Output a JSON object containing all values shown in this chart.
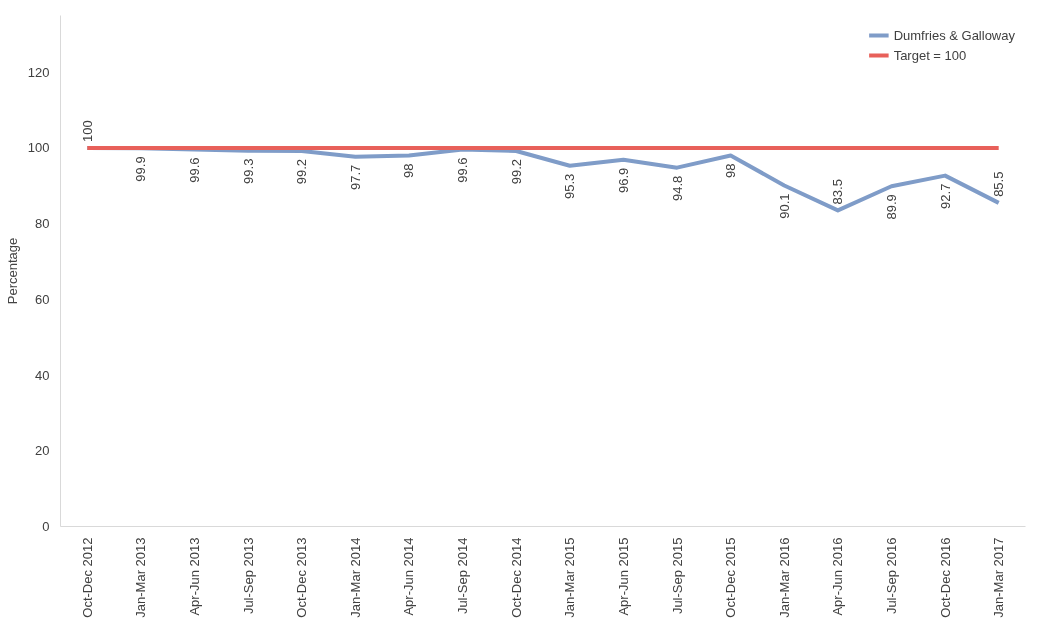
{
  "chart_data": {
    "type": "line",
    "ylabel": "Percentage",
    "categories": [
      "Oct-Dec 2012",
      "Jan-Mar 2013",
      "Apr-Jun 2013",
      "Jul-Sep 2013",
      "Oct-Dec 2013",
      "Jan-Mar 2014",
      "Apr-Jun 2014",
      "Jul-Sep 2014",
      "Oct-Dec 2014",
      "Jan-Mar 2015",
      "Apr-Jun 2015",
      "Jul-Sep 2015",
      "Oct-Dec 2015",
      "Jan-Mar 2016",
      "Apr-Jun 2016",
      "Jul-Sep 2016",
      "Oct-Dec 2016",
      "Jan-Mar 2017"
    ],
    "series": [
      {
        "name": "Dumfries & Galloway",
        "color": "#7f9cc8",
        "values": [
          100,
          99.9,
          99.6,
          99.3,
          99.2,
          97.7,
          98,
          99.6,
          99.2,
          95.3,
          96.9,
          94.8,
          98,
          90.1,
          83.5,
          89.9,
          92.7,
          85.5
        ],
        "value_labels": [
          "100",
          "99.9",
          "99.6",
          "99.3",
          "99.2",
          "97.7",
          "98",
          "99.6",
          "99.2",
          "95.3",
          "96.9",
          "94.8",
          "98",
          "90.1",
          "83.5",
          "89.9",
          "92.7",
          "85.5"
        ]
      },
      {
        "name": "Target = 100",
        "color": "#e8605a",
        "values": [
          100,
          100,
          100,
          100,
          100,
          100,
          100,
          100,
          100,
          100,
          100,
          100,
          100,
          100,
          100,
          100,
          100,
          100
        ]
      }
    ],
    "ylim": [
      0,
      135
    ],
    "yticks": [
      0,
      20,
      40,
      60,
      80,
      100,
      120
    ],
    "grid": false,
    "legend": "top right",
    "marker": "none",
    "line_style": "solid"
  }
}
